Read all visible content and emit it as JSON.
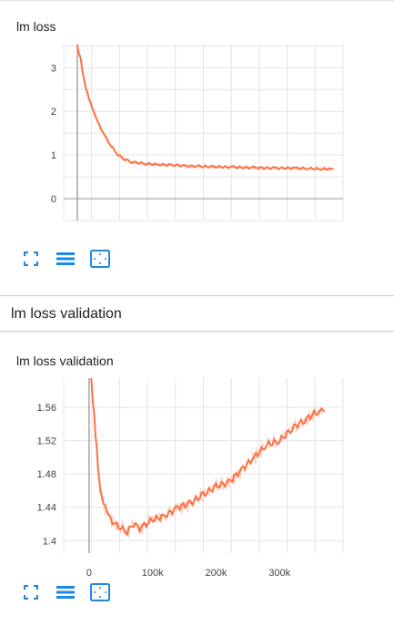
{
  "colors": {
    "series": "#ff7043",
    "series_faint": "#ffccbc",
    "grid": "#e4e4e4",
    "axis": "#9e9e9e",
    "icon": "#1e88e5"
  },
  "icons": [
    "fit-domain-icon",
    "log-scale-icon",
    "expand-icon"
  ],
  "card1": {
    "title": "lm loss"
  },
  "section": {
    "title": "lm loss validation"
  },
  "card2": {
    "title": "lm loss validation"
  },
  "chart_data": [
    {
      "type": "line",
      "title": "lm loss",
      "xlim": [
        -20000,
        390000
      ],
      "ylim": [
        -0.5,
        3.55
      ],
      "yticks": [
        "0",
        "1",
        "2",
        "3"
      ],
      "xticks": [],
      "grid": true,
      "series": [
        {
          "x": [
            0,
            5000,
            10000,
            15000,
            20000,
            25000,
            30000,
            40000,
            50000,
            60000,
            70000,
            80000,
            100000,
            120000,
            140000,
            160000,
            180000,
            200000,
            230000,
            260000,
            290000,
            320000,
            340000,
            360000,
            375000
          ],
          "y": [
            3.5,
            3.2,
            2.7,
            2.4,
            2.15,
            1.95,
            1.75,
            1.45,
            1.2,
            1.0,
            0.9,
            0.84,
            0.8,
            0.78,
            0.77,
            0.75,
            0.74,
            0.73,
            0.72,
            0.71,
            0.7,
            0.7,
            0.69,
            0.68,
            0.68
          ]
        }
      ]
    },
    {
      "type": "line",
      "title": "lm loss validation",
      "xlim": [
        -40000,
        400000
      ],
      "ylim": [
        1.385,
        1.595
      ],
      "yticks": [
        "1.4",
        "1.44",
        "1.48",
        "1.52",
        "1.56"
      ],
      "xticks": [
        "0",
        "100k",
        "200k",
        "300k"
      ],
      "grid": true,
      "series": [
        {
          "x": [
            3000,
            8000,
            12000,
            16000,
            20000,
            25000,
            30000,
            40000,
            50000,
            60000,
            70000,
            80000,
            90000,
            100000,
            120000,
            140000,
            160000,
            180000,
            200000,
            220000,
            240000,
            260000,
            280000,
            300000,
            320000,
            340000,
            360000,
            370000
          ],
          "y": [
            1.6,
            1.55,
            1.51,
            1.47,
            1.45,
            1.44,
            1.43,
            1.42,
            1.415,
            1.41,
            1.42,
            1.415,
            1.42,
            1.425,
            1.43,
            1.44,
            1.445,
            1.455,
            1.465,
            1.47,
            1.485,
            1.5,
            1.515,
            1.52,
            1.535,
            1.545,
            1.555,
            1.555
          ]
        }
      ]
    }
  ]
}
